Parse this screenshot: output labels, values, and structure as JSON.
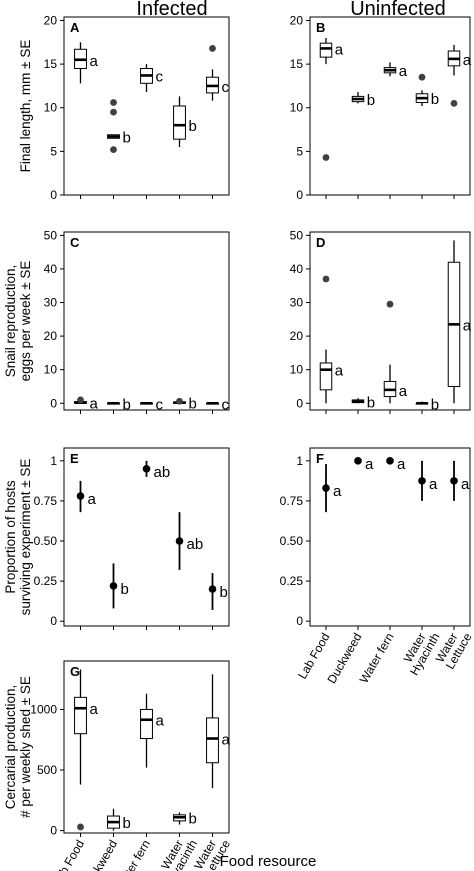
{
  "figure": {
    "column_titles": [
      "Infected",
      "Uninfected"
    ],
    "row_ylabels": [
      [
        "Final length, mm ± SE"
      ],
      [
        "Snail reproduction,",
        "eggs per week ± SE"
      ],
      [
        "Proportion of hosts",
        "surviving experiment ± SE"
      ],
      [
        "Cercarial production,",
        "# per weekly shed ± SE"
      ]
    ],
    "xlabel": "Food resource",
    "categories": [
      [
        "Lab Food"
      ],
      [
        "Duckweed"
      ],
      [
        "Water fern"
      ],
      [
        "Water",
        "Hyacinth"
      ],
      [
        "Water",
        "Lettuce"
      ]
    ]
  },
  "chart_data": [
    {
      "panel": "A",
      "type": "box",
      "group": "Infected",
      "ylim": [
        0,
        20
      ],
      "yticks": [
        0,
        5,
        10,
        15,
        20
      ],
      "boxes": [
        {
          "category": "Lab Food",
          "q1": 14.5,
          "median": 15.5,
          "q3": 16.7,
          "whisker_low": 12.8,
          "whisker_high": 17.5,
          "outliers": [],
          "letter": "a"
        },
        {
          "category": "Duckweed",
          "q1": 6.5,
          "median": 6.7,
          "q3": 6.9,
          "whisker_low": 6.5,
          "whisker_high": 6.9,
          "outliers": [
            5.2,
            9.5,
            10.6
          ],
          "letter": "b"
        },
        {
          "category": "Water fern",
          "q1": 12.8,
          "median": 13.7,
          "q3": 14.5,
          "whisker_low": 11.8,
          "whisker_high": 15.0,
          "outliers": [],
          "letter": "c"
        },
        {
          "category": "Water Hyacinth",
          "q1": 6.4,
          "median": 8.0,
          "q3": 10.2,
          "whisker_low": 5.5,
          "whisker_high": 11.3,
          "outliers": [],
          "letter": "b"
        },
        {
          "category": "Water Lettuce",
          "q1": 11.7,
          "median": 12.5,
          "q3": 13.5,
          "whisker_low": 10.8,
          "whisker_high": 14.4,
          "outliers": [
            16.8
          ],
          "letter": "c"
        }
      ]
    },
    {
      "panel": "B",
      "type": "box",
      "group": "Uninfected",
      "ylim": [
        0,
        20
      ],
      "yticks": [
        0,
        5,
        10,
        15,
        20
      ],
      "boxes": [
        {
          "category": "Lab Food",
          "q1": 15.8,
          "median": 16.8,
          "q3": 17.4,
          "whisker_low": 15.0,
          "whisker_high": 18.0,
          "outliers": [
            4.3
          ],
          "letter": "a"
        },
        {
          "category": "Duckweed",
          "q1": 10.7,
          "median": 11.0,
          "q3": 11.3,
          "whisker_low": 10.5,
          "whisker_high": 11.8,
          "outliers": [],
          "letter": "b"
        },
        {
          "category": "Water fern",
          "q1": 14.0,
          "median": 14.3,
          "q3": 14.6,
          "whisker_low": 13.6,
          "whisker_high": 15.2,
          "outliers": [],
          "letter": "a"
        },
        {
          "category": "Water Hyacinth",
          "q1": 10.6,
          "median": 11.1,
          "q3": 11.6,
          "whisker_low": 10.2,
          "whisker_high": 12.0,
          "outliers": [
            13.5
          ],
          "letter": "b"
        },
        {
          "category": "Water Lettuce",
          "q1": 14.8,
          "median": 15.6,
          "q3": 16.5,
          "whisker_low": 13.7,
          "whisker_high": 17.2,
          "outliers": [
            10.5
          ],
          "letter": "a"
        }
      ]
    },
    {
      "panel": "C",
      "type": "box",
      "group": "Infected",
      "ylim": [
        0,
        50
      ],
      "yticks": [
        0,
        10,
        20,
        30,
        40,
        50
      ],
      "boxes": [
        {
          "category": "Lab Food",
          "q1": 0.0,
          "median": 0.2,
          "q3": 0.5,
          "whisker_low": 0.0,
          "whisker_high": 0.8,
          "outliers": [
            1.0
          ],
          "letter": "a"
        },
        {
          "category": "Duckweed",
          "q1": 0.0,
          "median": 0.0,
          "q3": 0.0,
          "whisker_low": 0.0,
          "whisker_high": 0.3,
          "outliers": [],
          "letter": "b"
        },
        {
          "category": "Water fern",
          "q1": 0.0,
          "median": 0.0,
          "q3": 0.0,
          "whisker_low": 0.0,
          "whisker_high": 0.2,
          "outliers": [],
          "letter": "c"
        },
        {
          "category": "Water Hyacinth",
          "q1": 0.0,
          "median": 0.2,
          "q3": 0.4,
          "whisker_low": 0.0,
          "whisker_high": 0.6,
          "outliers": [
            0.6
          ],
          "letter": "b"
        },
        {
          "category": "Water Lettuce",
          "q1": 0.0,
          "median": 0.0,
          "q3": 0.0,
          "whisker_low": 0.0,
          "whisker_high": 0.2,
          "outliers": [],
          "letter": "c"
        }
      ]
    },
    {
      "panel": "D",
      "type": "box",
      "group": "Uninfected",
      "ylim": [
        0,
        50
      ],
      "yticks": [
        0,
        10,
        20,
        30,
        40,
        50
      ],
      "boxes": [
        {
          "category": "Lab Food",
          "q1": 4.0,
          "median": 10.0,
          "q3": 12.0,
          "whisker_low": 0.0,
          "whisker_high": 16.0,
          "outliers": [
            37.0
          ],
          "letter": "a"
        },
        {
          "category": "Duckweed",
          "q1": 0.2,
          "median": 0.5,
          "q3": 1.0,
          "whisker_low": 0.0,
          "whisker_high": 1.5,
          "outliers": [],
          "letter": "b"
        },
        {
          "category": "Water fern",
          "q1": 2.0,
          "median": 4.0,
          "q3": 6.5,
          "whisker_low": 0.0,
          "whisker_high": 11.5,
          "outliers": [
            29.5
          ],
          "letter": "a"
        },
        {
          "category": "Water Hyacinth",
          "q1": 0.0,
          "median": 0.0,
          "q3": 0.0,
          "whisker_low": 0.0,
          "whisker_high": 0.5,
          "outliers": [],
          "letter": "b"
        },
        {
          "category": "Water Lettuce",
          "q1": 5.0,
          "median": 23.5,
          "q3": 42.0,
          "whisker_low": 0.0,
          "whisker_high": 48.5,
          "outliers": [],
          "letter": "a"
        }
      ]
    },
    {
      "panel": "E",
      "type": "point-range",
      "group": "Infected",
      "ylim": [
        0,
        1
      ],
      "yticks": [
        0,
        0.25,
        0.5,
        0.75,
        1.0
      ],
      "points": [
        {
          "category": "Lab Food",
          "value": 0.78,
          "lower": 0.68,
          "upper": 0.875,
          "letter": "a"
        },
        {
          "category": "Duckweed",
          "value": 0.22,
          "lower": 0.08,
          "upper": 0.36,
          "letter": "b"
        },
        {
          "category": "Water fern",
          "value": 0.95,
          "lower": 0.9,
          "upper": 1.0,
          "letter": "ab"
        },
        {
          "category": "Water Hyacinth",
          "value": 0.5,
          "lower": 0.32,
          "upper": 0.68,
          "letter": "ab"
        },
        {
          "category": "Water Lettuce",
          "value": 0.2,
          "lower": 0.07,
          "upper": 0.3,
          "letter": "b"
        }
      ]
    },
    {
      "panel": "F",
      "type": "point-range",
      "group": "Uninfected",
      "ylim": [
        0,
        1
      ],
      "yticks": [
        0,
        0.25,
        0.5,
        0.75,
        1.0
      ],
      "points": [
        {
          "category": "Lab Food",
          "value": 0.83,
          "lower": 0.68,
          "upper": 0.98,
          "letter": "a"
        },
        {
          "category": "Duckweed",
          "value": 1.0,
          "lower": 1.0,
          "upper": 1.0,
          "letter": "a"
        },
        {
          "category": "Water fern",
          "value": 1.0,
          "lower": 1.0,
          "upper": 1.0,
          "letter": "a"
        },
        {
          "category": "Water Hyacinth",
          "value": 0.875,
          "lower": 0.75,
          "upper": 1.0,
          "letter": "a"
        },
        {
          "category": "Water Lettuce",
          "value": 0.875,
          "lower": 0.75,
          "upper": 1.0,
          "letter": "a"
        }
      ]
    },
    {
      "panel": "G",
      "type": "box",
      "group": "Infected",
      "ylim": [
        0,
        1400
      ],
      "yticks": [
        0,
        500,
        1000
      ],
      "boxes": [
        {
          "category": "Lab Food",
          "q1": 800,
          "median": 1010,
          "q3": 1100,
          "whisker_low": 380,
          "whisker_high": 1330,
          "outliers": [
            30
          ],
          "letter": "a"
        },
        {
          "category": "Duckweed",
          "q1": 20,
          "median": 70,
          "q3": 120,
          "whisker_low": 0,
          "whisker_high": 180,
          "outliers": [],
          "letter": "b"
        },
        {
          "category": "Water fern",
          "q1": 760,
          "median": 915,
          "q3": 1000,
          "whisker_low": 520,
          "whisker_high": 1130,
          "outliers": [],
          "letter": "a"
        },
        {
          "category": "Water Hyacinth",
          "q1": 80,
          "median": 110,
          "q3": 130,
          "whisker_low": 50,
          "whisker_high": 150,
          "outliers": [],
          "letter": "b"
        },
        {
          "category": "Water Lettuce",
          "q1": 560,
          "median": 760,
          "q3": 930,
          "whisker_low": 350,
          "whisker_high": 1290,
          "outliers": [],
          "letter": "a"
        }
      ]
    }
  ]
}
